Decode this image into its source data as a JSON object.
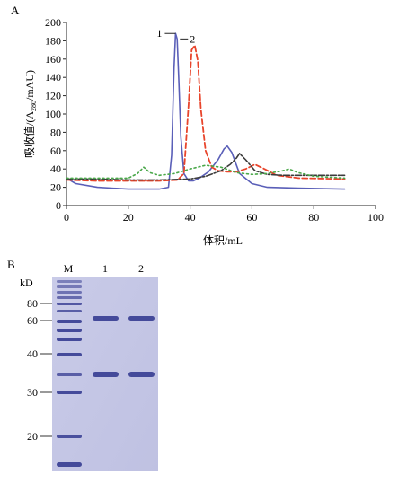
{
  "panel_a": {
    "label": "A",
    "chart_data": {
      "type": "line",
      "xlabel": "体积/mL",
      "ylabel_parts": [
        "吸收值/(A",
        "280",
        "/mAU)"
      ],
      "xlim": [
        0,
        100
      ],
      "ylim": [
        0,
        200
      ],
      "x_ticks": [
        0,
        20,
        40,
        60,
        80,
        100
      ],
      "y_ticks": [
        0,
        20,
        40,
        60,
        80,
        100,
        120,
        140,
        160,
        180,
        200
      ],
      "grid": false,
      "annotations": [
        "1",
        "2"
      ],
      "series": [
        {
          "color": "#5a5fb8",
          "dash": "none",
          "x": [
            0,
            3,
            10,
            20,
            30,
            33,
            34,
            34.8,
            35.3,
            35.8,
            36.3,
            37,
            38,
            39.5,
            41,
            43,
            46,
            49,
            51,
            52,
            53.5,
            56,
            60,
            65,
            75,
            90
          ],
          "y": [
            30,
            24,
            20,
            18,
            18,
            20,
            55,
            150,
            188,
            182,
            140,
            75,
            35,
            27,
            27,
            30,
            37,
            50,
            62,
            65,
            58,
            35,
            24,
            20,
            19,
            18
          ]
        },
        {
          "color": "#e8452c",
          "dash": "6,3",
          "x": [
            0,
            10,
            20,
            30,
            36,
            38,
            39.5,
            40.5,
            41.5,
            42.5,
            43.5,
            45,
            47,
            49,
            52,
            55,
            58,
            61,
            64,
            68,
            75,
            90
          ],
          "y": [
            28,
            27,
            27,
            27,
            28,
            35,
            110,
            170,
            175,
            158,
            105,
            60,
            42,
            38,
            37,
            37,
            40,
            45,
            40,
            33,
            30,
            29
          ]
        },
        {
          "color": "#3b3b3b",
          "dash": "7,2,2,2",
          "x": [
            0,
            10,
            20,
            30,
            40,
            45,
            50,
            53,
            55,
            56,
            58,
            61,
            65,
            70,
            80,
            90
          ],
          "y": [
            29,
            29,
            28,
            28,
            29,
            32,
            38,
            45,
            52,
            57,
            50,
            38,
            34,
            33,
            33,
            33
          ]
        },
        {
          "color": "#4aa84a",
          "dash": "2,3",
          "x": [
            0,
            10,
            20,
            23,
            25,
            27,
            30,
            35,
            40,
            45,
            50,
            55,
            60,
            65,
            70,
            72,
            75,
            80,
            90
          ],
          "y": [
            30,
            30,
            30,
            35,
            42,
            36,
            33,
            35,
            40,
            44,
            42,
            36,
            34,
            35,
            38,
            40,
            36,
            32,
            30
          ]
        }
      ]
    }
  },
  "panel_b": {
    "label": "B",
    "unit": "kD",
    "lane_labels": [
      "M",
      "1",
      "2"
    ],
    "markers": [
      "80",
      "60",
      "40",
      "30",
      "20"
    ]
  }
}
